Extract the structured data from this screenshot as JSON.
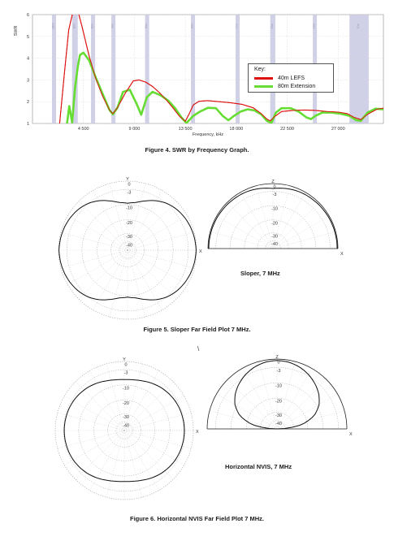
{
  "chart_data": [
    {
      "type": "line",
      "title": "",
      "xlabel": "Frequency, kHz",
      "ylabel": "SWR",
      "xlim": [
        0,
        31000
      ],
      "ylim": [
        1,
        6
      ],
      "x_ticks": [
        "4 500",
        "9 000",
        "13 500",
        "18 000",
        "22 500",
        "27 000"
      ],
      "x_tick_values": [
        4500,
        9000,
        13500,
        18000,
        22500,
        27000
      ],
      "y_ticks": [
        "1",
        "2",
        "3",
        "4",
        "5",
        "6"
      ],
      "grid": true,
      "band_labels": [
        "160m",
        "80m",
        "60m",
        "40m",
        "30m",
        "20m",
        "17m",
        "15m",
        "12m",
        "10m"
      ],
      "bands_khz": [
        [
          1800,
          2000
        ],
        [
          3500,
          4000
        ],
        [
          5250,
          5450
        ],
        [
          7000,
          7300
        ],
        [
          10100,
          10150
        ],
        [
          14000,
          14350
        ],
        [
          18068,
          18168
        ],
        [
          21000,
          21450
        ],
        [
          24890,
          24990
        ],
        [
          28000,
          29700
        ]
      ],
      "legend_title": "Key:",
      "legend_position": "upper-right",
      "series": [
        {
          "name": "40m LEFS",
          "color": "#dd1111",
          "x": [
            2400,
            2800,
            3200,
            3600,
            4000,
            4400,
            5000,
            5600,
            6200,
            6800,
            7100,
            7500,
            8200,
            8900,
            9400,
            10000,
            10600,
            11200,
            11800,
            12400,
            13000,
            13500,
            13800,
            14200,
            14700,
            15500,
            16500,
            17500,
            18500,
            19500,
            20200,
            20700,
            21000,
            21400,
            22000,
            23000,
            24000,
            25000,
            26000,
            27000,
            27800,
            28400,
            29000,
            29600,
            30400,
            31000
          ],
          "y": [
            1,
            3.2,
            5.3,
            6.2,
            6.2,
            5.4,
            4.1,
            3.05,
            2.25,
            1.62,
            1.45,
            1.72,
            2.4,
            2.95,
            3,
            2.9,
            2.7,
            2.42,
            2.1,
            1.72,
            1.32,
            1.1,
            1.4,
            1.85,
            2.02,
            2.05,
            2,
            1.95,
            1.88,
            1.72,
            1.45,
            1.2,
            1.12,
            1.32,
            1.55,
            1.6,
            1.62,
            1.6,
            1.55,
            1.52,
            1.45,
            1.28,
            1.18,
            1.42,
            1.65,
            1.7
          ]
        },
        {
          "name": "80m Extension",
          "color": "#66dd33",
          "x": [
            3050,
            3250,
            3500,
            3750,
            4000,
            4200,
            4500,
            5000,
            5600,
            6200,
            6800,
            7100,
            7500,
            8000,
            8600,
            9200,
            9600,
            10100,
            10600,
            11300,
            12000,
            12600,
            13200,
            13600,
            14200,
            14800,
            15500,
            16200,
            16800,
            17300,
            17800,
            18400,
            19000,
            19600,
            20200,
            20700,
            21100,
            21500,
            22000,
            22800,
            23500,
            24200,
            24600,
            25000,
            25600,
            26400,
            27200,
            28000,
            28600,
            29000,
            29600,
            30300,
            31000
          ],
          "y": [
            1,
            1.8,
            1.05,
            2.6,
            3.6,
            4.15,
            4.25,
            3.9,
            3.1,
            2.35,
            1.62,
            1.42,
            1.72,
            2.45,
            2.55,
            1.9,
            1.4,
            2.2,
            2.45,
            2.3,
            2.05,
            1.7,
            1.25,
            1.02,
            1.35,
            1.55,
            1.72,
            1.7,
            1.35,
            1.15,
            1.35,
            1.55,
            1.65,
            1.6,
            1.42,
            1.12,
            1.02,
            1.5,
            1.7,
            1.7,
            1.55,
            1.28,
            1.2,
            1.35,
            1.5,
            1.5,
            1.45,
            1.35,
            1.15,
            1.12,
            1.5,
            1.68,
            1.65
          ]
        }
      ]
    },
    {
      "type": "polar",
      "plane": "azimuth",
      "axis_top": "Y",
      "axis_right": "X",
      "ring_labels": [
        "0",
        "-3",
        "-10",
        "-20",
        "-30",
        "-40"
      ],
      "rlim_db": [
        -40,
        0
      ],
      "angles_deg": [
        0,
        10,
        20,
        30,
        40,
        50,
        60,
        70,
        80,
        90
      ],
      "gain_db": [
        -0.3,
        -0.6,
        -1.1,
        -1.9,
        -3.0,
        -4.6,
        -6.9,
        -9.6,
        -12.0,
        -12.8
      ]
    },
    {
      "type": "polar",
      "plane": "elevation",
      "axis_top": "Z",
      "axis_right": "X",
      "ring_labels": [
        "0",
        "-3",
        "-10",
        "-20",
        "-30",
        "-40"
      ],
      "rlim_db": [
        -40,
        0
      ],
      "angles_deg": [
        0,
        10,
        20,
        30,
        40,
        50,
        60,
        70,
        80,
        90
      ],
      "gain_db": [
        -0.5,
        -0.5,
        -0.6,
        -0.7,
        -0.9,
        -1.1,
        -1.3,
        -1.7,
        -2.3,
        -3.0
      ]
    },
    {
      "type": "polar",
      "plane": "azimuth",
      "axis_top": "Y",
      "axis_right": "X",
      "ring_labels": [
        "0",
        "-3",
        "-10",
        "-20",
        "-30",
        "-40"
      ],
      "rlim_db": [
        -40,
        0
      ],
      "angles_deg": [
        0,
        10,
        20,
        30,
        40,
        50,
        60,
        70,
        80,
        90
      ],
      "gain_db": [
        -5.2,
        -5.3,
        -5.5,
        -5.9,
        -6.5,
        -7.3,
        -8.3,
        -9.4,
        -10.2,
        -10.5
      ]
    },
    {
      "type": "polar",
      "plane": "elevation",
      "axis_top": "Z",
      "axis_right": "X",
      "ring_labels": [
        "0",
        "-3",
        "-10",
        "-20",
        "-30",
        "-40"
      ],
      "rlim_db": [
        -40,
        0
      ],
      "angles_deg": [
        0,
        10,
        20,
        30,
        40,
        50,
        60,
        70,
        80,
        90
      ],
      "gain_db": [
        -40,
        -25.5,
        -17.2,
        -12.2,
        -8.8,
        -6.2,
        -4.0,
        -2.3,
        -1.2,
        -0.8
      ]
    }
  ],
  "captions": {
    "fig4": "Figure 4. SWR by Frequency Graph.",
    "fig5": "Figure 5. Sloper Far Field Plot 7 MHz.",
    "fig6": "Figure 6. Horizontal NVIS Far Field Plot 7 MHz.",
    "label_sloper": "Sloper, 7 MHz",
    "label_nvis": "Horizontal NVIS, 7 MHz",
    "stray_mark": "\\"
  }
}
